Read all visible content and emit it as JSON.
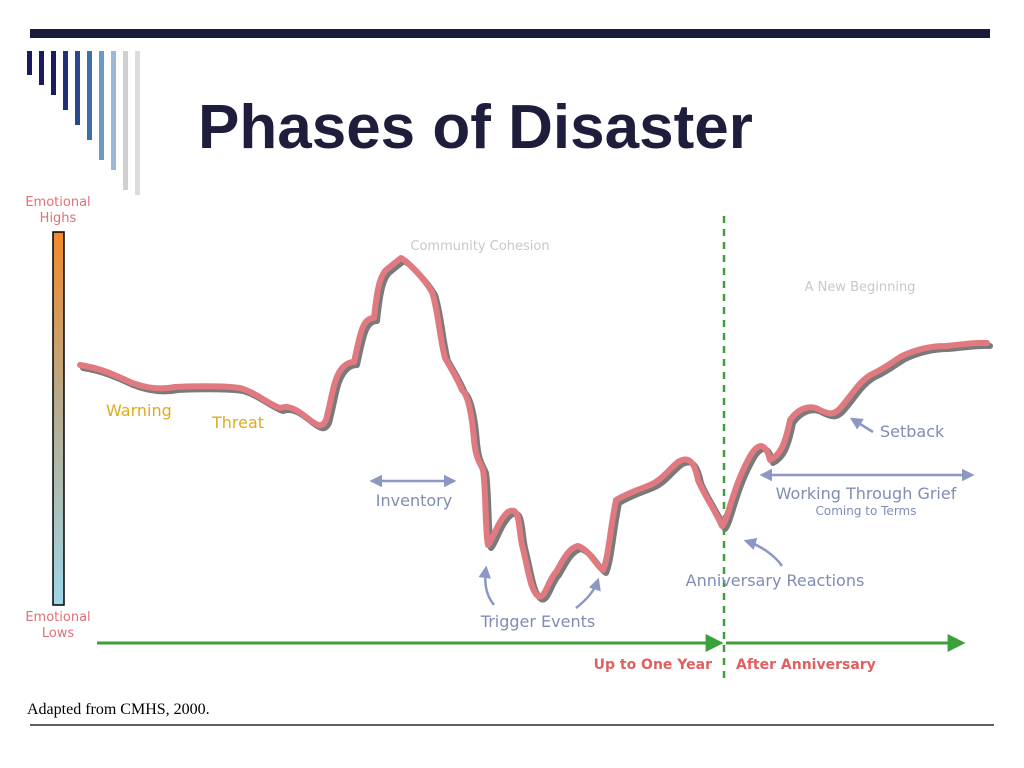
{
  "title": "Phases of Disaster",
  "source": "Adapted from CMHS, 2000.",
  "scale": {
    "high": [
      "Emotional",
      "Highs"
    ],
    "low": [
      "Emotional",
      "Lows"
    ]
  },
  "labels": {
    "warning": "Warning",
    "threat": "Threat",
    "community_cohesion": "Community Cohesion",
    "inventory": "Inventory",
    "trigger_events": "Trigger Events",
    "anniversary_reactions": "Anniversary Reactions",
    "new_beginning": "A New Beginning",
    "setback": "Setback",
    "working_through_grief": "Working Through Grief",
    "coming_to_terms": "Coming to Terms"
  },
  "timeline": {
    "before": "Up to One Year",
    "after": "After Anniversary"
  },
  "colors": {
    "curve": "#e07a80",
    "curve_shadow": "#7a7a7a",
    "arrow": "#8d97c4",
    "timeline": "#3aa03a",
    "title": "#1e1e3c",
    "stripes": [
      "#1a1a5e",
      "#1a1a5e",
      "#1a1a5e",
      "#1f2f78",
      "#2a4a90",
      "#3f6ea8",
      "#6a9ac4",
      "#9ab8d8",
      "#cfcfcf",
      "#dcdcdc"
    ]
  }
}
